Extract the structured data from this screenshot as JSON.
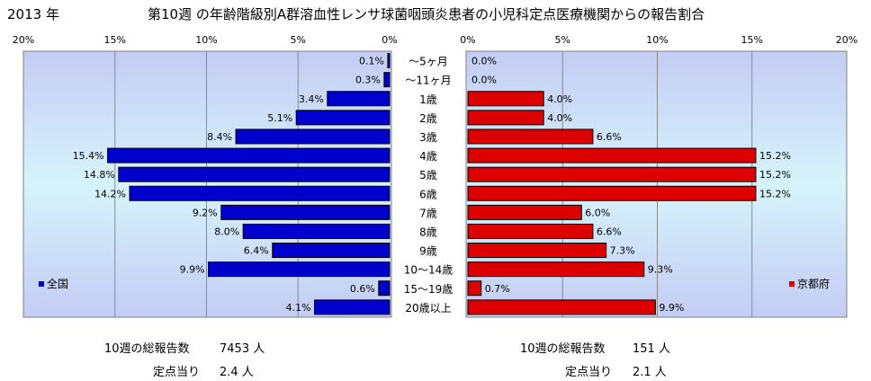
{
  "header": {
    "year": "2013 年",
    "title": "第10週 の年齢階級別A群溶血性レンサ球菌咽頭炎患者の小児科定点医療機関からの報告割合"
  },
  "chart_data": {
    "type": "bar",
    "orientation": "horizontal",
    "categories": [
      "～5ヶ月",
      "～11ヶ月",
      "1歳",
      "2歳",
      "3歳",
      "4歳",
      "5歳",
      "6歳",
      "7歳",
      "8歳",
      "9歳",
      "10～14歳",
      "15～19歳",
      "20歳以上"
    ],
    "xlim": [
      0,
      20
    ],
    "x_ticks": [
      "0%",
      "5%",
      "10%",
      "15%",
      "20%"
    ],
    "series": [
      {
        "name": "全国",
        "color": "#0000cc",
        "values": [
          0.1,
          0.3,
          3.4,
          5.1,
          8.4,
          15.4,
          14.8,
          14.2,
          9.2,
          8.0,
          6.4,
          9.9,
          0.6,
          4.1
        ],
        "labels": [
          "0.1%",
          "0.3%",
          "3.4%",
          "5.1%",
          "8.4%",
          "15.4%",
          "14.8%",
          "14.2%",
          "9.2%",
          "8.0%",
          "6.4%",
          "9.9%",
          "0.6%",
          "4.1%"
        ]
      },
      {
        "name": "京都府",
        "color": "#dd0000",
        "values": [
          0.0,
          0.0,
          4.0,
          4.0,
          6.6,
          15.2,
          15.2,
          15.2,
          6.0,
          6.6,
          7.3,
          9.3,
          0.7,
          9.9
        ],
        "labels": [
          "0.0%",
          "0.0%",
          "4.0%",
          "4.0%",
          "6.6%",
          "15.2%",
          "15.2%",
          "15.2%",
          "6.0%",
          "6.6%",
          "7.3%",
          "9.3%",
          "0.7%",
          "9.9%"
        ]
      }
    ],
    "legend": {
      "left": "全国",
      "right": "京都府"
    }
  },
  "footer": {
    "left": {
      "total_label": "10週の総報告数",
      "total_value": "7453 人",
      "per_label": "定点当り",
      "per_value": "2.4 人"
    },
    "right": {
      "total_label": "10週の総報告数",
      "total_value": "151 人",
      "per_label": "定点当り",
      "per_value": "2.1 人"
    }
  }
}
